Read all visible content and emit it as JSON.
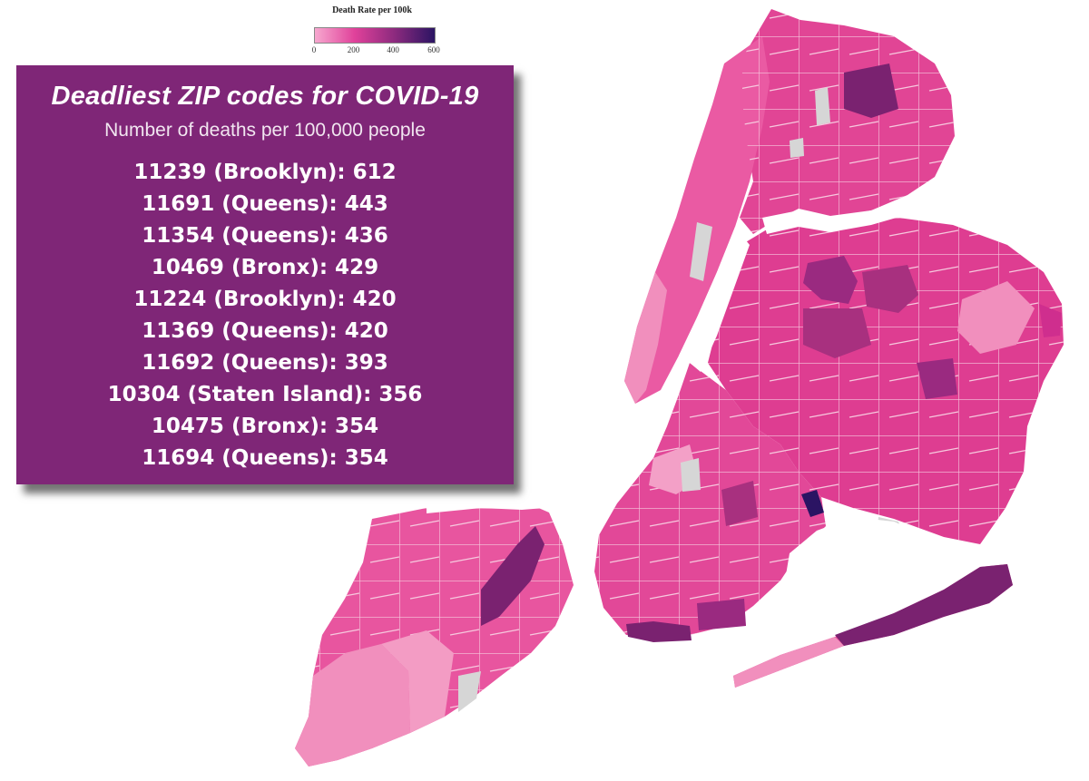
{
  "legend": {
    "title": "Death Rate per 100k",
    "ticks": [
      "0",
      "200",
      "400",
      "600"
    ],
    "colors": [
      "#f7a8cf",
      "#e0419a",
      "#8c2a7e",
      "#2b1463"
    ]
  },
  "panel": {
    "title": "Deadliest ZIP codes for COVID-19",
    "subtitle": "Number of deaths per 100,000 people",
    "background": "#7f2677",
    "items": [
      {
        "text": "11239 (Brooklyn): 612"
      },
      {
        "text": "11691 (Queens): 443"
      },
      {
        "text": "11354 (Queens): 436"
      },
      {
        "text": "10469 (Bronx): 429"
      },
      {
        "text": "11224 (Brooklyn): 420"
      },
      {
        "text": "11369 (Queens): 420"
      },
      {
        "text": "11692 (Queens): 393"
      },
      {
        "text": "10304 (Staten Island): 356"
      },
      {
        "text": "10475 (Bronx): 354"
      },
      {
        "text": "11694 (Queens): 354"
      }
    ]
  },
  "map": {
    "colors": {
      "light": "#f18fbd",
      "medium": "#e9559f",
      "strong": "#dd3a8f",
      "high": "#a8307f",
      "very_high": "#7a2270",
      "highest": "#2b1463",
      "no_data": "#d6d6d6",
      "water": "#ffffff",
      "border": "#f6c9de"
    }
  }
}
